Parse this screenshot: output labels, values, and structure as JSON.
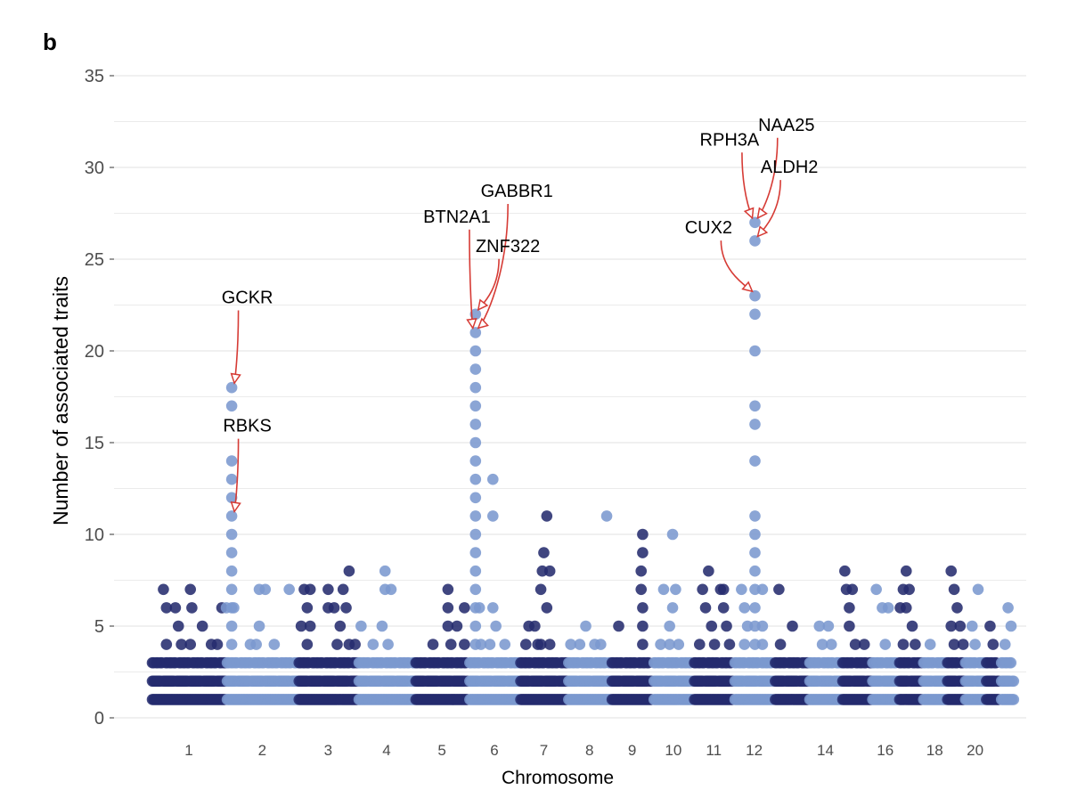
{
  "panel_label": "b",
  "chart_data": {
    "type": "scatter",
    "title": "",
    "xlabel": "Chromosome",
    "ylabel": "Number of associated traits",
    "ylim": [
      0,
      35
    ],
    "yticks": [
      0,
      5,
      10,
      15,
      20,
      25,
      30,
      35
    ],
    "grid": true,
    "legend": "none",
    "colors": {
      "dark": "#252c6e",
      "light": "#7b99cf",
      "annotation": "#d63b35"
    },
    "chromosomes": [
      {
        "chr": 1,
        "label": "1",
        "start": 0.0,
        "end": 2.5,
        "color": "dark"
      },
      {
        "chr": 2,
        "label": "2",
        "start": 2.5,
        "end": 4.9,
        "color": "light"
      },
      {
        "chr": 3,
        "label": "3",
        "start": 4.9,
        "end": 6.9,
        "color": "dark"
      },
      {
        "chr": 4,
        "label": "4",
        "start": 6.9,
        "end": 8.8,
        "color": "light"
      },
      {
        "chr": 5,
        "label": "5",
        "start": 8.8,
        "end": 10.6,
        "color": "dark"
      },
      {
        "chr": 6,
        "label": "6",
        "start": 10.6,
        "end": 12.3,
        "color": "light"
      },
      {
        "chr": 7,
        "label": "7",
        "start": 12.3,
        "end": 13.9,
        "color": "dark"
      },
      {
        "chr": 8,
        "label": "8",
        "start": 13.9,
        "end": 15.35,
        "color": "light"
      },
      {
        "chr": 9,
        "label": "9",
        "start": 15.35,
        "end": 16.75,
        "color": "dark"
      },
      {
        "chr": 10,
        "label": "10",
        "start": 16.75,
        "end": 18.1,
        "color": "light"
      },
      {
        "chr": 11,
        "label": "11",
        "start": 18.1,
        "end": 19.45,
        "color": "dark"
      },
      {
        "chr": 12,
        "label": "12",
        "start": 19.45,
        "end": 20.8,
        "color": "light"
      },
      {
        "chr": 13,
        "label": "",
        "start": 20.8,
        "end": 21.95,
        "color": "dark"
      },
      {
        "chr": 14,
        "label": "14",
        "start": 21.95,
        "end": 23.05,
        "color": "light"
      },
      {
        "chr": 15,
        "label": "",
        "start": 23.05,
        "end": 24.05,
        "color": "dark"
      },
      {
        "chr": 16,
        "label": "16",
        "start": 24.05,
        "end": 24.95,
        "color": "light"
      },
      {
        "chr": 17,
        "label": "",
        "start": 24.95,
        "end": 25.75,
        "color": "dark"
      },
      {
        "chr": 18,
        "label": "18",
        "start": 25.75,
        "end": 26.55,
        "color": "light"
      },
      {
        "chr": 19,
        "label": "",
        "start": 26.55,
        "end": 27.15,
        "color": "dark"
      },
      {
        "chr": 20,
        "label": "20",
        "start": 27.15,
        "end": 27.85,
        "color": "light"
      },
      {
        "chr": 21,
        "label": "",
        "start": 27.85,
        "end": 28.35,
        "color": "dark"
      },
      {
        "chr": 22,
        "label": "",
        "start": 28.35,
        "end": 28.85,
        "color": "light"
      }
    ],
    "points": [
      {
        "pos": 0.4,
        "y": 7
      },
      {
        "pos": 0.5,
        "y": 6
      },
      {
        "pos": 0.5,
        "y": 4
      },
      {
        "pos": 0.8,
        "y": 6
      },
      {
        "pos": 0.9,
        "y": 5
      },
      {
        "pos": 1.3,
        "y": 7
      },
      {
        "pos": 1.35,
        "y": 6
      },
      {
        "pos": 1.3,
        "y": 4
      },
      {
        "pos": 1.7,
        "y": 5
      },
      {
        "pos": 2.0,
        "y": 4
      },
      {
        "pos": 2.2,
        "y": 4
      },
      {
        "pos": 1.0,
        "y": 4
      },
      {
        "pos": 2.35,
        "y": 6
      },
      {
        "pos": 2.68,
        "y": 18
      },
      {
        "pos": 2.68,
        "y": 17
      },
      {
        "pos": 2.68,
        "y": 14
      },
      {
        "pos": 2.68,
        "y": 13
      },
      {
        "pos": 2.68,
        "y": 12
      },
      {
        "pos": 2.68,
        "y": 11
      },
      {
        "pos": 2.68,
        "y": 10
      },
      {
        "pos": 2.68,
        "y": 9
      },
      {
        "pos": 2.68,
        "y": 8
      },
      {
        "pos": 2.68,
        "y": 7
      },
      {
        "pos": 2.68,
        "y": 6
      },
      {
        "pos": 2.68,
        "y": 5
      },
      {
        "pos": 2.68,
        "y": 4
      },
      {
        "pos": 2.5,
        "y": 6
      },
      {
        "pos": 2.75,
        "y": 6
      },
      {
        "pos": 3.5,
        "y": 4
      },
      {
        "pos": 3.6,
        "y": 7
      },
      {
        "pos": 3.8,
        "y": 7
      },
      {
        "pos": 3.6,
        "y": 5
      },
      {
        "pos": 4.1,
        "y": 4
      },
      {
        "pos": 4.6,
        "y": 7
      },
      {
        "pos": 3.3,
        "y": 4
      },
      {
        "pos": 5.1,
        "y": 7
      },
      {
        "pos": 5.3,
        "y": 7
      },
      {
        "pos": 5.2,
        "y": 6
      },
      {
        "pos": 5.0,
        "y": 5
      },
      {
        "pos": 5.3,
        "y": 5
      },
      {
        "pos": 5.2,
        "y": 4
      },
      {
        "pos": 5.9,
        "y": 7
      },
      {
        "pos": 5.9,
        "y": 6
      },
      {
        "pos": 6.1,
        "y": 6
      },
      {
        "pos": 6.3,
        "y": 5
      },
      {
        "pos": 6.6,
        "y": 4
      },
      {
        "pos": 6.2,
        "y": 4
      },
      {
        "pos": 6.4,
        "y": 7
      },
      {
        "pos": 6.6,
        "y": 8
      },
      {
        "pos": 6.5,
        "y": 6
      },
      {
        "pos": 7.0,
        "y": 5
      },
      {
        "pos": 6.8,
        "y": 4
      },
      {
        "pos": 7.8,
        "y": 8
      },
      {
        "pos": 7.8,
        "y": 7
      },
      {
        "pos": 8.0,
        "y": 7
      },
      {
        "pos": 7.7,
        "y": 5
      },
      {
        "pos": 7.9,
        "y": 4
      },
      {
        "pos": 7.4,
        "y": 4
      },
      {
        "pos": 9.4,
        "y": 4
      },
      {
        "pos": 9.9,
        "y": 7
      },
      {
        "pos": 9.9,
        "y": 6
      },
      {
        "pos": 9.9,
        "y": 5
      },
      {
        "pos": 10.2,
        "y": 5
      },
      {
        "pos": 10.0,
        "y": 4
      },
      {
        "pos": 10.45,
        "y": 6
      },
      {
        "pos": 10.45,
        "y": 4
      },
      {
        "pos": 10.82,
        "y": 22
      },
      {
        "pos": 10.82,
        "y": 21
      },
      {
        "pos": 10.82,
        "y": 20
      },
      {
        "pos": 10.82,
        "y": 19
      },
      {
        "pos": 10.82,
        "y": 18
      },
      {
        "pos": 10.82,
        "y": 17
      },
      {
        "pos": 10.82,
        "y": 16
      },
      {
        "pos": 10.82,
        "y": 15
      },
      {
        "pos": 10.82,
        "y": 14
      },
      {
        "pos": 10.82,
        "y": 13
      },
      {
        "pos": 10.82,
        "y": 12
      },
      {
        "pos": 10.82,
        "y": 11
      },
      {
        "pos": 10.82,
        "y": 10
      },
      {
        "pos": 10.82,
        "y": 9
      },
      {
        "pos": 10.82,
        "y": 8
      },
      {
        "pos": 10.82,
        "y": 7
      },
      {
        "pos": 10.82,
        "y": 6
      },
      {
        "pos": 10.82,
        "y": 5
      },
      {
        "pos": 10.82,
        "y": 4
      },
      {
        "pos": 10.95,
        "y": 6
      },
      {
        "pos": 11.0,
        "y": 4
      },
      {
        "pos": 11.4,
        "y": 13
      },
      {
        "pos": 11.4,
        "y": 11
      },
      {
        "pos": 11.4,
        "y": 6
      },
      {
        "pos": 11.5,
        "y": 5
      },
      {
        "pos": 11.8,
        "y": 4
      },
      {
        "pos": 11.3,
        "y": 4
      },
      {
        "pos": 12.6,
        "y": 5
      },
      {
        "pos": 13.0,
        "y": 4
      },
      {
        "pos": 13.1,
        "y": 9
      },
      {
        "pos": 13.05,
        "y": 8
      },
      {
        "pos": 13.2,
        "y": 11
      },
      {
        "pos": 13.0,
        "y": 7
      },
      {
        "pos": 13.2,
        "y": 6
      },
      {
        "pos": 13.3,
        "y": 8
      },
      {
        "pos": 12.8,
        "y": 5
      },
      {
        "pos": 13.3,
        "y": 4
      },
      {
        "pos": 12.5,
        "y": 4
      },
      {
        "pos": 12.9,
        "y": 4
      },
      {
        "pos": 14.0,
        "y": 4
      },
      {
        "pos": 14.3,
        "y": 4
      },
      {
        "pos": 14.8,
        "y": 4
      },
      {
        "pos": 14.5,
        "y": 5
      },
      {
        "pos": 15.2,
        "y": 11
      },
      {
        "pos": 15.0,
        "y": 4
      },
      {
        "pos": 15.6,
        "y": 5
      },
      {
        "pos": 16.4,
        "y": 10
      },
      {
        "pos": 16.35,
        "y": 8
      },
      {
        "pos": 16.4,
        "y": 9
      },
      {
        "pos": 16.35,
        "y": 7
      },
      {
        "pos": 16.4,
        "y": 6
      },
      {
        "pos": 16.4,
        "y": 5
      },
      {
        "pos": 16.4,
        "y": 4
      },
      {
        "pos": 17.1,
        "y": 7
      },
      {
        "pos": 17.4,
        "y": 10
      },
      {
        "pos": 17.4,
        "y": 6
      },
      {
        "pos": 17.5,
        "y": 7
      },
      {
        "pos": 17.3,
        "y": 5
      },
      {
        "pos": 17.6,
        "y": 4
      },
      {
        "pos": 17.0,
        "y": 4
      },
      {
        "pos": 17.3,
        "y": 4
      },
      {
        "pos": 18.4,
        "y": 7
      },
      {
        "pos": 18.5,
        "y": 6
      },
      {
        "pos": 18.6,
        "y": 8
      },
      {
        "pos": 18.7,
        "y": 5
      },
      {
        "pos": 18.8,
        "y": 4
      },
      {
        "pos": 19.0,
        "y": 7
      },
      {
        "pos": 19.1,
        "y": 6
      },
      {
        "pos": 19.2,
        "y": 5
      },
      {
        "pos": 19.3,
        "y": 4
      },
      {
        "pos": 18.3,
        "y": 4
      },
      {
        "pos": 19.1,
        "y": 7
      },
      {
        "pos": 19.7,
        "y": 7
      },
      {
        "pos": 19.8,
        "y": 6
      },
      {
        "pos": 19.9,
        "y": 5
      },
      {
        "pos": 19.8,
        "y": 4
      },
      {
        "pos": 20.15,
        "y": 27
      },
      {
        "pos": 20.15,
        "y": 26
      },
      {
        "pos": 20.15,
        "y": 23
      },
      {
        "pos": 20.15,
        "y": 22
      },
      {
        "pos": 20.15,
        "y": 20
      },
      {
        "pos": 20.15,
        "y": 17
      },
      {
        "pos": 20.15,
        "y": 16
      },
      {
        "pos": 20.15,
        "y": 14
      },
      {
        "pos": 20.15,
        "y": 11
      },
      {
        "pos": 20.15,
        "y": 10
      },
      {
        "pos": 20.15,
        "y": 9
      },
      {
        "pos": 20.15,
        "y": 8
      },
      {
        "pos": 20.15,
        "y": 7
      },
      {
        "pos": 20.15,
        "y": 6
      },
      {
        "pos": 20.15,
        "y": 5
      },
      {
        "pos": 20.15,
        "y": 4
      },
      {
        "pos": 20.4,
        "y": 7
      },
      {
        "pos": 20.4,
        "y": 5
      },
      {
        "pos": 20.4,
        "y": 4
      },
      {
        "pos": 20.95,
        "y": 7
      },
      {
        "pos": 21.4,
        "y": 5
      },
      {
        "pos": 21.0,
        "y": 4
      },
      {
        "pos": 22.3,
        "y": 5
      },
      {
        "pos": 22.6,
        "y": 5
      },
      {
        "pos": 22.4,
        "y": 4
      },
      {
        "pos": 22.7,
        "y": 4
      },
      {
        "pos": 23.15,
        "y": 8
      },
      {
        "pos": 23.2,
        "y": 7
      },
      {
        "pos": 23.4,
        "y": 7
      },
      {
        "pos": 23.3,
        "y": 6
      },
      {
        "pos": 23.3,
        "y": 5
      },
      {
        "pos": 23.5,
        "y": 4
      },
      {
        "pos": 23.8,
        "y": 4
      },
      {
        "pos": 24.2,
        "y": 7
      },
      {
        "pos": 24.4,
        "y": 6
      },
      {
        "pos": 24.6,
        "y": 6
      },
      {
        "pos": 24.5,
        "y": 4
      },
      {
        "pos": 25.2,
        "y": 8
      },
      {
        "pos": 25.1,
        "y": 7
      },
      {
        "pos": 25.3,
        "y": 7
      },
      {
        "pos": 25.0,
        "y": 6
      },
      {
        "pos": 25.2,
        "y": 6
      },
      {
        "pos": 25.4,
        "y": 5
      },
      {
        "pos": 25.1,
        "y": 4
      },
      {
        "pos": 25.5,
        "y": 4
      },
      {
        "pos": 26.0,
        "y": 4
      },
      {
        "pos": 26.7,
        "y": 8
      },
      {
        "pos": 26.8,
        "y": 7
      },
      {
        "pos": 26.9,
        "y": 6
      },
      {
        "pos": 26.7,
        "y": 5
      },
      {
        "pos": 27.0,
        "y": 5
      },
      {
        "pos": 26.8,
        "y": 4
      },
      {
        "pos": 27.1,
        "y": 4
      },
      {
        "pos": 27.4,
        "y": 5
      },
      {
        "pos": 27.6,
        "y": 7
      },
      {
        "pos": 27.5,
        "y": 4
      },
      {
        "pos": 28.0,
        "y": 5
      },
      {
        "pos": 28.1,
        "y": 4
      },
      {
        "pos": 28.6,
        "y": 6
      },
      {
        "pos": 28.7,
        "y": 5
      },
      {
        "pos": 28.5,
        "y": 4
      }
    ],
    "annotations": [
      {
        "label": "GCKR",
        "point": {
          "pos": 2.68,
          "y": 18
        },
        "label_pos": {
          "pos": 3.2,
          "y": 22.6
        },
        "anchor": "middle"
      },
      {
        "label": "RBKS",
        "point": {
          "pos": 2.68,
          "y": 11
        },
        "label_pos": {
          "pos": 3.2,
          "y": 15.6
        },
        "anchor": "middle"
      },
      {
        "label": "BTN2A1",
        "point": {
          "pos": 10.82,
          "y": 21
        },
        "label_pos": {
          "pos": 10.2,
          "y": 27.0
        },
        "anchor": "middle"
      },
      {
        "label": "GABBR1",
        "point": {
          "pos": 10.82,
          "y": 21
        },
        "label_pos": {
          "pos": 12.2,
          "y": 28.4
        },
        "anchor": "middle"
      },
      {
        "label": "ZNF322",
        "point": {
          "pos": 10.82,
          "y": 22
        },
        "label_pos": {
          "pos": 11.9,
          "y": 25.4
        },
        "anchor": "middle"
      },
      {
        "label": "RPH3A",
        "point": {
          "pos": 20.15,
          "y": 27
        },
        "label_pos": {
          "pos": 19.3,
          "y": 31.2
        },
        "anchor": "middle"
      },
      {
        "label": "NAA25",
        "point": {
          "pos": 20.15,
          "y": 27
        },
        "label_pos": {
          "pos": 21.2,
          "y": 32.0
        },
        "anchor": "middle"
      },
      {
        "label": "ALDH2",
        "point": {
          "pos": 20.15,
          "y": 26
        },
        "label_pos": {
          "pos": 21.3,
          "y": 29.7
        },
        "anchor": "middle"
      },
      {
        "label": "CUX2",
        "point": {
          "pos": 20.15,
          "y": 23
        },
        "label_pos": {
          "pos": 18.6,
          "y": 26.4
        },
        "anchor": "middle"
      }
    ]
  }
}
